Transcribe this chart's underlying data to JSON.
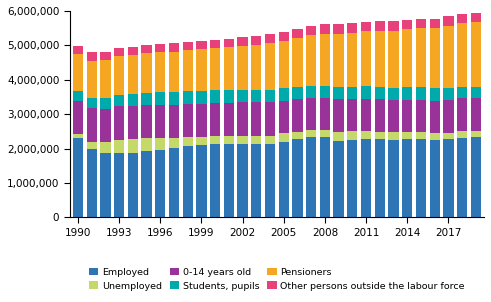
{
  "years": [
    1990,
    1991,
    1992,
    1993,
    1994,
    1995,
    1996,
    1997,
    1998,
    1999,
    2000,
    2001,
    2002,
    2003,
    2004,
    2005,
    2006,
    2007,
    2008,
    2009,
    2010,
    2011,
    2012,
    2013,
    2014,
    2015,
    2016,
    2017,
    2018,
    2019
  ],
  "employed": [
    2310000,
    2000000,
    1860000,
    1860000,
    1870000,
    1920000,
    1950000,
    2010000,
    2080000,
    2110000,
    2130000,
    2140000,
    2140000,
    2130000,
    2140000,
    2200000,
    2270000,
    2330000,
    2340000,
    2230000,
    2240000,
    2270000,
    2270000,
    2260000,
    2270000,
    2280000,
    2260000,
    2270000,
    2320000,
    2340000
  ],
  "unemployed": [
    100000,
    190000,
    320000,
    400000,
    400000,
    380000,
    360000,
    310000,
    260000,
    240000,
    240000,
    230000,
    240000,
    250000,
    240000,
    240000,
    220000,
    200000,
    190000,
    260000,
    260000,
    240000,
    220000,
    210000,
    210000,
    200000,
    190000,
    190000,
    180000,
    170000
  ],
  "children_0_14": [
    980000,
    980000,
    970000,
    970000,
    970000,
    970000,
    970000,
    960000,
    960000,
    960000,
    960000,
    960000,
    960000,
    960000,
    960000,
    950000,
    940000,
    940000,
    940000,
    940000,
    940000,
    940000,
    940000,
    940000,
    940000,
    940000,
    940000,
    960000,
    960000,
    960000
  ],
  "students": [
    290000,
    300000,
    320000,
    340000,
    350000,
    350000,
    360000,
    360000,
    360000,
    360000,
    360000,
    360000,
    360000,
    360000,
    360000,
    360000,
    360000,
    360000,
    360000,
    360000,
    360000,
    360000,
    360000,
    360000,
    360000,
    360000,
    360000,
    350000,
    340000,
    330000
  ],
  "pensioners": [
    1060000,
    1090000,
    1110000,
    1110000,
    1130000,
    1150000,
    1160000,
    1180000,
    1200000,
    1220000,
    1240000,
    1260000,
    1290000,
    1320000,
    1360000,
    1390000,
    1420000,
    1460000,
    1500000,
    1540000,
    1570000,
    1600000,
    1630000,
    1660000,
    1690000,
    1720000,
    1760000,
    1800000,
    1840000,
    1880000
  ],
  "other_outside": [
    230000,
    240000,
    230000,
    240000,
    240000,
    240000,
    230000,
    240000,
    230000,
    240000,
    230000,
    240000,
    250000,
    250000,
    260000,
    260000,
    270000,
    270000,
    280000,
    280000,
    270000,
    270000,
    280000,
    280000,
    280000,
    270000,
    270000,
    270000,
    260000,
    250000
  ],
  "colors": {
    "employed": "#2E75B6",
    "unemployed": "#C5D96B",
    "children_0_14": "#993399",
    "students": "#00AAAA",
    "pensioners": "#F5A623",
    "other_outside": "#E8407A"
  },
  "legend_labels": [
    "Employed",
    "Unemployed",
    "0-14 years old",
    "Students, pupils",
    "Pensioners",
    "Other persons outside the labour force"
  ],
  "ylabel_ticks": [
    0,
    1000000,
    2000000,
    3000000,
    4000000,
    5000000,
    6000000
  ],
  "xlim": [
    1989.4,
    2019.6
  ],
  "ylim": [
    0,
    6000000
  ]
}
